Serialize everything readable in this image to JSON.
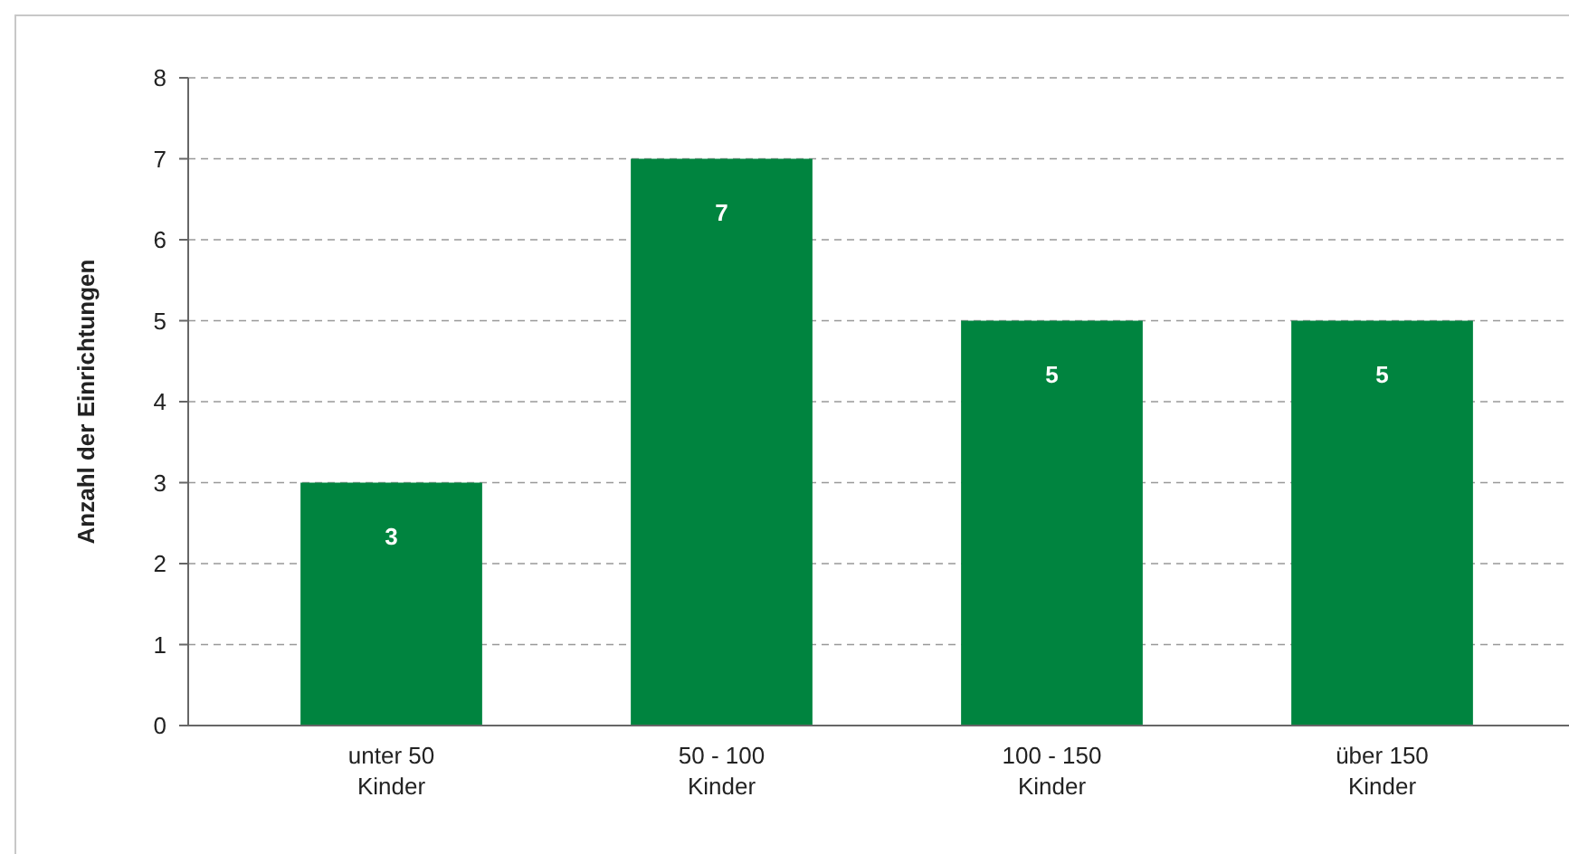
{
  "chart_data": {
    "type": "bar",
    "ylabel": "Anzahl der Einrichtungen",
    "categories": [
      "unter 50\nKinder",
      "50 - 100\nKinder",
      "100 - 150\nKinder",
      "über 150\nKinder"
    ],
    "values": [
      3,
      7,
      5,
      5
    ],
    "color": "#00843f",
    "ylim": [
      0,
      8
    ],
    "yticks": [
      0,
      1,
      2,
      3,
      4,
      5,
      6,
      7,
      8
    ],
    "grid": "y",
    "data_labels": true
  }
}
